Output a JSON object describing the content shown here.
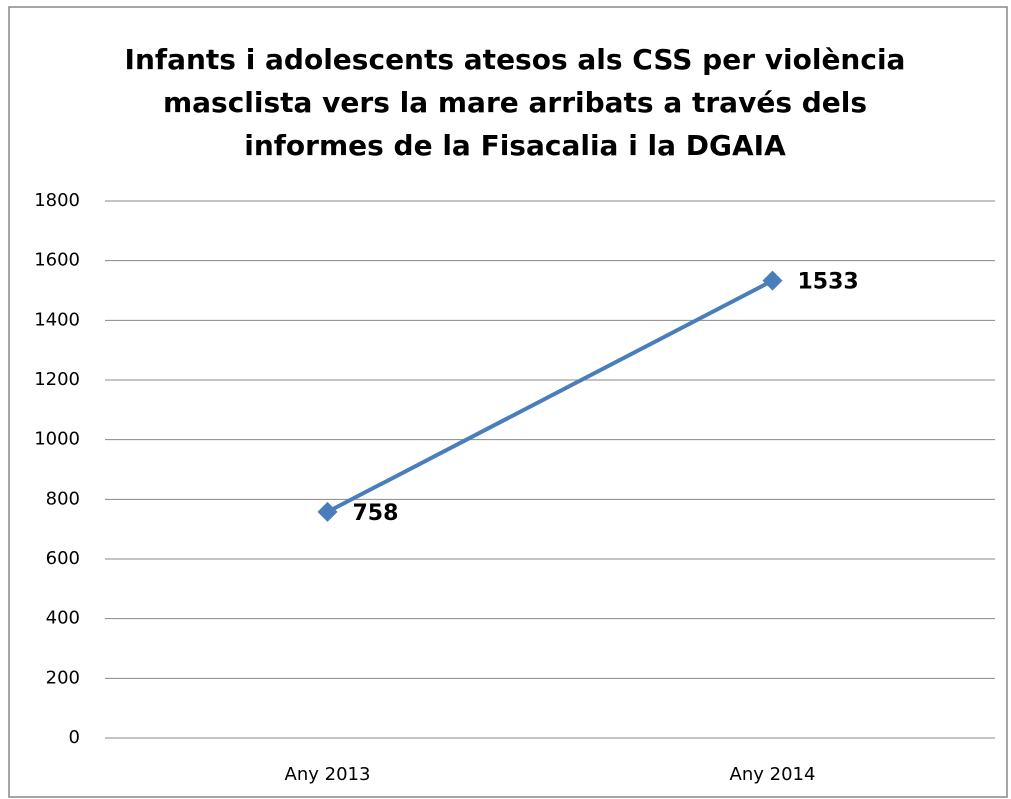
{
  "chart_data": {
    "type": "line",
    "title": "Infants i adolescents atesos als CSS per violència masclista vers la mare arribats a través dels informes de la Fisacalia i la DGAIA",
    "categories": [
      "Any 2013",
      "Any 2014"
    ],
    "values": [
      758,
      1533
    ],
    "color": "#4a7ebb",
    "ylim": [
      0,
      1800
    ],
    "yticks": [
      0,
      200,
      400,
      600,
      800,
      1000,
      1200,
      1400,
      1600,
      1800
    ],
    "grid": true,
    "data_labels": true
  }
}
